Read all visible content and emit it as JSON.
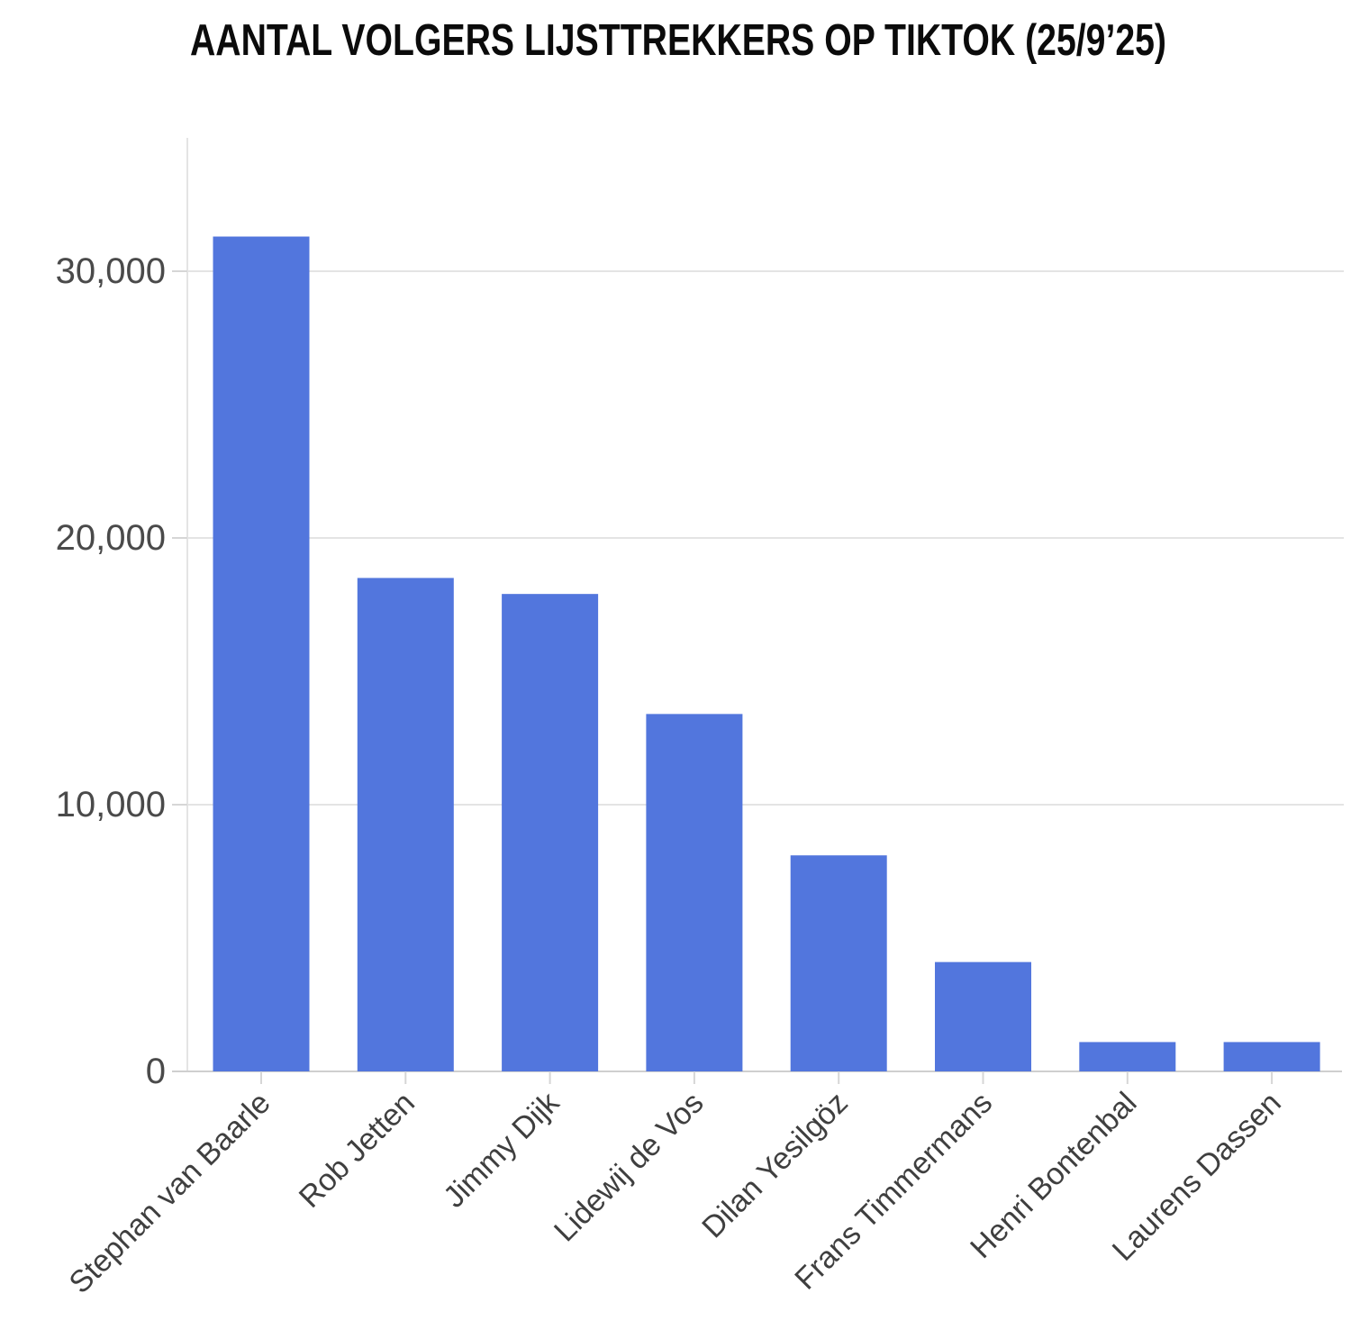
{
  "chart_data": {
    "type": "bar",
    "title": "AANTAL VOLGERS LIJSTTREKKERS OP TIKTOK (25/9’25)",
    "categories": [
      "Stephan van Baarle",
      "Rob Jetten",
      "Jimmy Dijk",
      "Lidewij de Vos",
      "Dilan Yesilgöz",
      "Frans Timmermans",
      "Henri Bontenbal",
      "Laurens Dassen"
    ],
    "values": [
      31300,
      18500,
      17900,
      13400,
      8100,
      4100,
      1100,
      1100
    ],
    "xlabel": "",
    "ylabel": "",
    "ylim": [
      0,
      35000
    ],
    "yticks": [
      0,
      10000,
      20000,
      30000
    ],
    "ytick_labels": [
      "0",
      "10,000",
      "20,000",
      "30,000"
    ],
    "grid": true,
    "legend": false,
    "colors": {
      "bar": "#5276dd",
      "gridline": "#e4e4e4",
      "axis_line": "#e4e4e4",
      "baseline": "#cfcfcf",
      "tick_mark": "#d6d6d6",
      "y_tick_label": "#4a4a4a",
      "x_tick_label": "#3f3f3f",
      "title": "#0b0b0b",
      "background": "#ffffff"
    }
  }
}
